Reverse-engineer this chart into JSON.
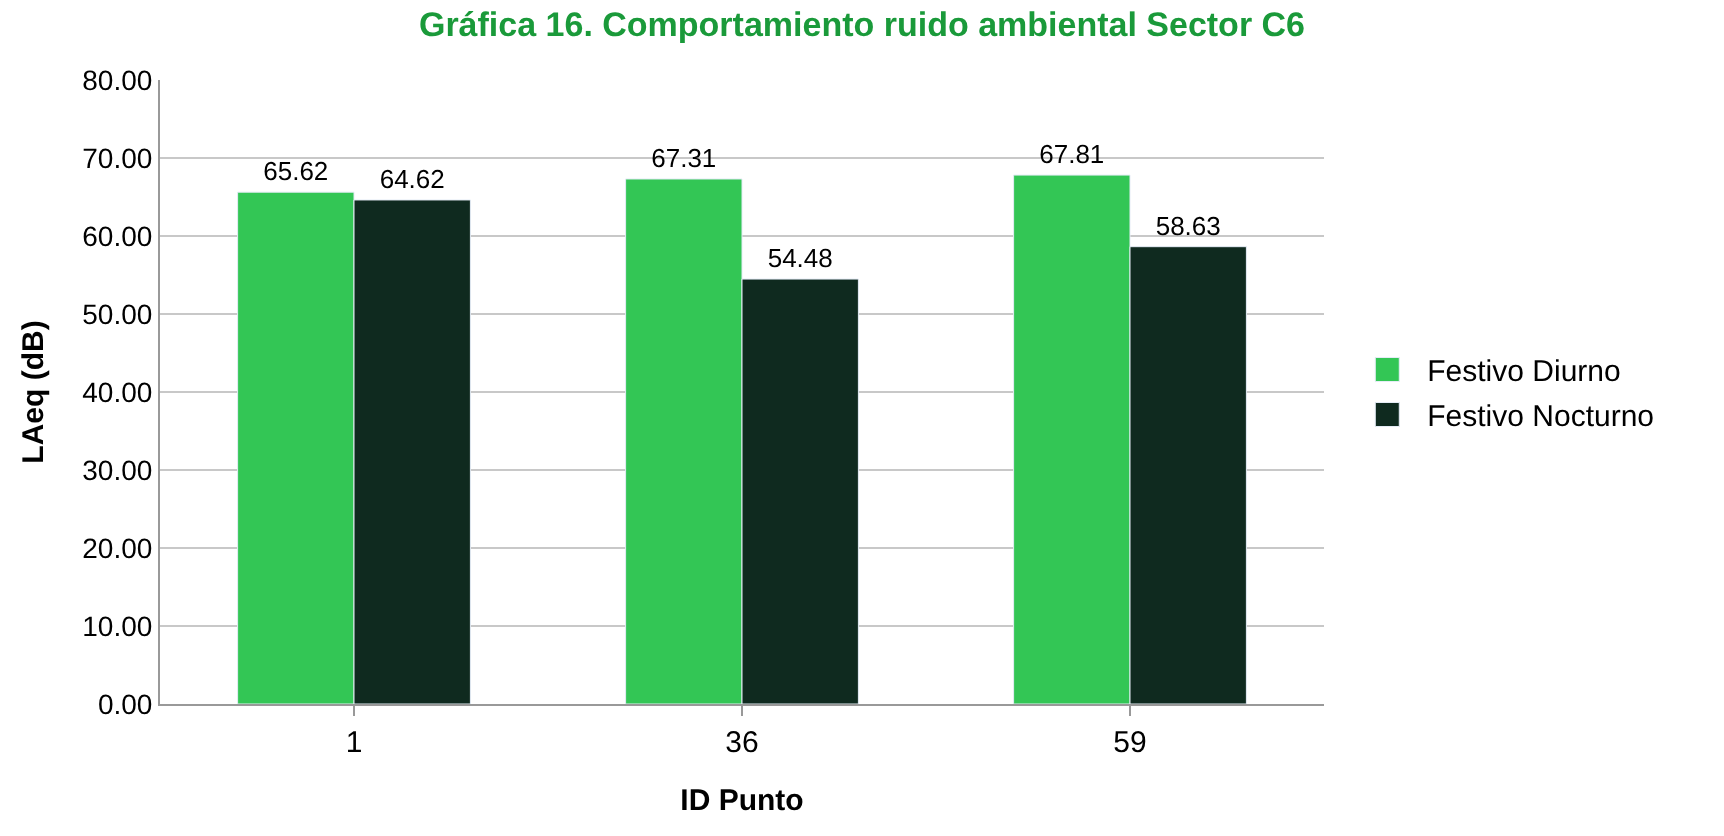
{
  "chart_data": {
    "type": "bar",
    "title": "Gráfica 16. Comportamiento ruido ambiental Sector C6",
    "xlabel": "ID Punto",
    "ylabel": "LAeq (dB)",
    "categories": [
      "1",
      "36",
      "59"
    ],
    "series": [
      {
        "name": "Festivo Diurno",
        "color": "#33c655",
        "values": [
          65.62,
          67.31,
          67.81
        ]
      },
      {
        "name": "Festivo Nocturno",
        "color": "#0f2a1f",
        "values": [
          64.62,
          54.48,
          58.63
        ]
      }
    ],
    "ylim": [
      0,
      80
    ],
    "yticks": [
      {
        "value": 0,
        "label": "0.00"
      },
      {
        "value": 10,
        "label": "10.00"
      },
      {
        "value": 20,
        "label": "20.00"
      },
      {
        "value": 30,
        "label": "30.00"
      },
      {
        "value": 40,
        "label": "40.00"
      },
      {
        "value": 50,
        "label": "50.00"
      },
      {
        "value": 60,
        "label": "60.00"
      },
      {
        "value": 70,
        "label": "70.00"
      },
      {
        "value": 80,
        "label": "80.00"
      }
    ],
    "grid": "y",
    "legend": "right",
    "data_labels": true
  }
}
